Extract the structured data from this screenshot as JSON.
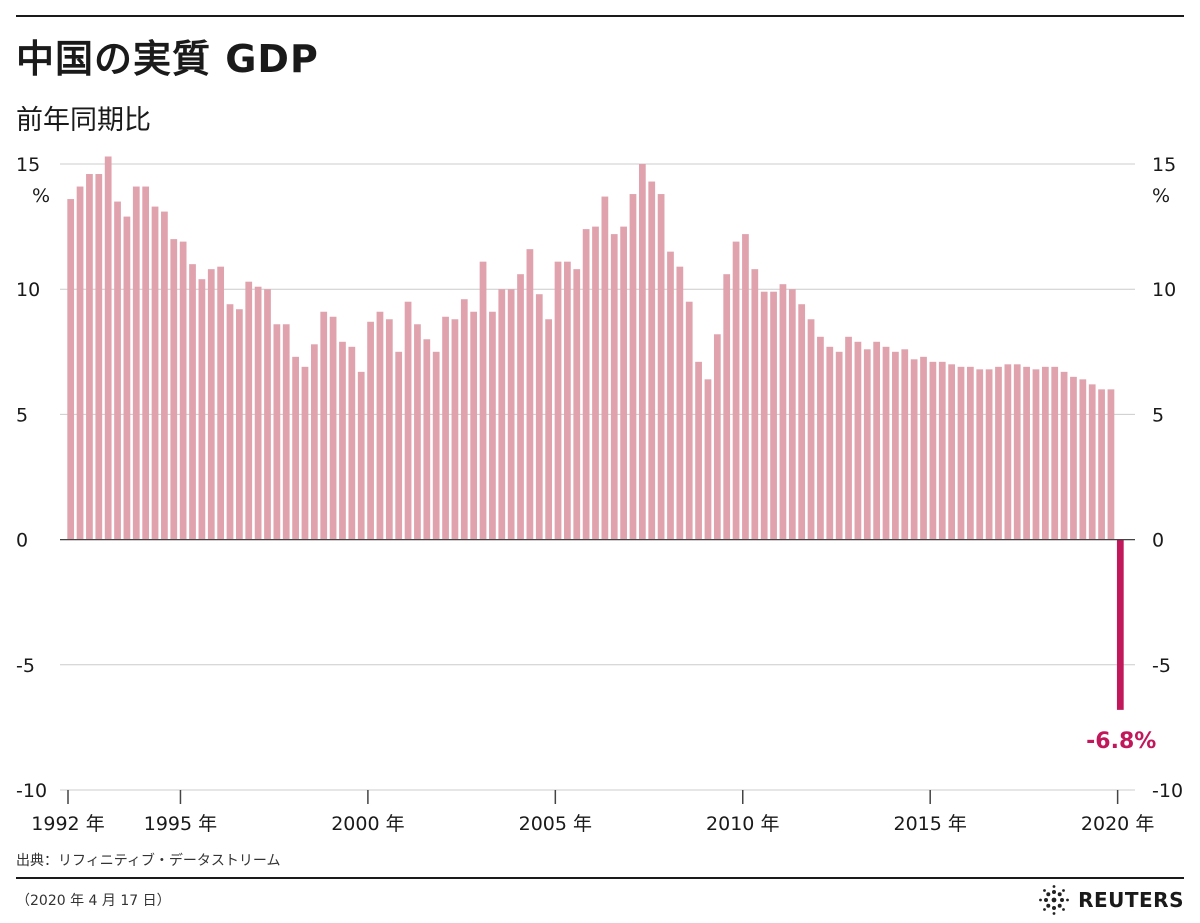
{
  "title": "中国の実質 GDP",
  "subtitle": "前年同期比",
  "source": "出典：リフィニティブ・データストリーム",
  "date": "（2020 年 4 月 17 日）",
  "brand": {
    "name": "REUTERS",
    "logo_icon": "reuters-logo-icon"
  },
  "colors": {
    "bar": "#e0a3ae",
    "highlight": "#c0185a",
    "grid": "#cccccc",
    "axis": "#444444",
    "text": "#1a1a1a"
  },
  "chart_data": {
    "type": "bar",
    "title": "中国の実質 GDP",
    "subtitle": "前年同期比",
    "xlabel": "",
    "ylabel": "%",
    "unit_label": "%",
    "ylim": [
      -10,
      15
    ],
    "yticks": [
      15,
      10,
      5,
      0,
      -5,
      -10
    ],
    "grid": true,
    "x_start": "1992 Q1",
    "x_tick_labels": [
      {
        "label": "1992 年",
        "index": 0
      },
      {
        "label": "1995 年",
        "index": 12
      },
      {
        "label": "2000 年",
        "index": 32
      },
      {
        "label": "2005 年",
        "index": 52
      },
      {
        "label": "2010 年",
        "index": 72
      },
      {
        "label": "2015 年",
        "index": 92
      },
      {
        "label": "2020 年",
        "index": 112
      }
    ],
    "values": [
      13.6,
      14.1,
      14.6,
      14.6,
      15.3,
      13.5,
      12.9,
      14.1,
      14.1,
      13.3,
      13.1,
      12.0,
      11.9,
      11.0,
      10.4,
      10.8,
      10.9,
      9.4,
      9.2,
      10.3,
      10.1,
      10.0,
      8.6,
      8.6,
      7.3,
      6.9,
      7.8,
      9.1,
      8.9,
      7.9,
      7.7,
      6.7,
      8.7,
      9.1,
      8.8,
      7.5,
      9.5,
      8.6,
      8.0,
      7.5,
      8.9,
      8.8,
      9.6,
      9.1,
      11.1,
      9.1,
      10.0,
      10.0,
      10.6,
      11.6,
      9.8,
      8.8,
      11.1,
      11.1,
      10.8,
      12.4,
      12.5,
      13.7,
      12.2,
      12.5,
      13.8,
      15.0,
      14.3,
      13.8,
      11.5,
      10.9,
      9.5,
      7.1,
      6.4,
      8.2,
      10.6,
      11.9,
      12.2,
      10.8,
      9.9,
      9.9,
      10.2,
      10.0,
      9.4,
      8.8,
      8.1,
      7.7,
      7.5,
      8.1,
      7.9,
      7.6,
      7.9,
      7.7,
      7.5,
      7.6,
      7.2,
      7.3,
      7.1,
      7.1,
      7.0,
      6.9,
      6.9,
      6.8,
      6.8,
      6.9,
      7.0,
      7.0,
      6.9,
      6.8,
      6.9,
      6.9,
      6.7,
      6.5,
      6.4,
      6.2,
      6.0,
      6.0,
      -6.8
    ],
    "highlight": {
      "index": 112,
      "label": "2020 Q1",
      "value": -6.8,
      "annotation": "-6.8%"
    }
  }
}
